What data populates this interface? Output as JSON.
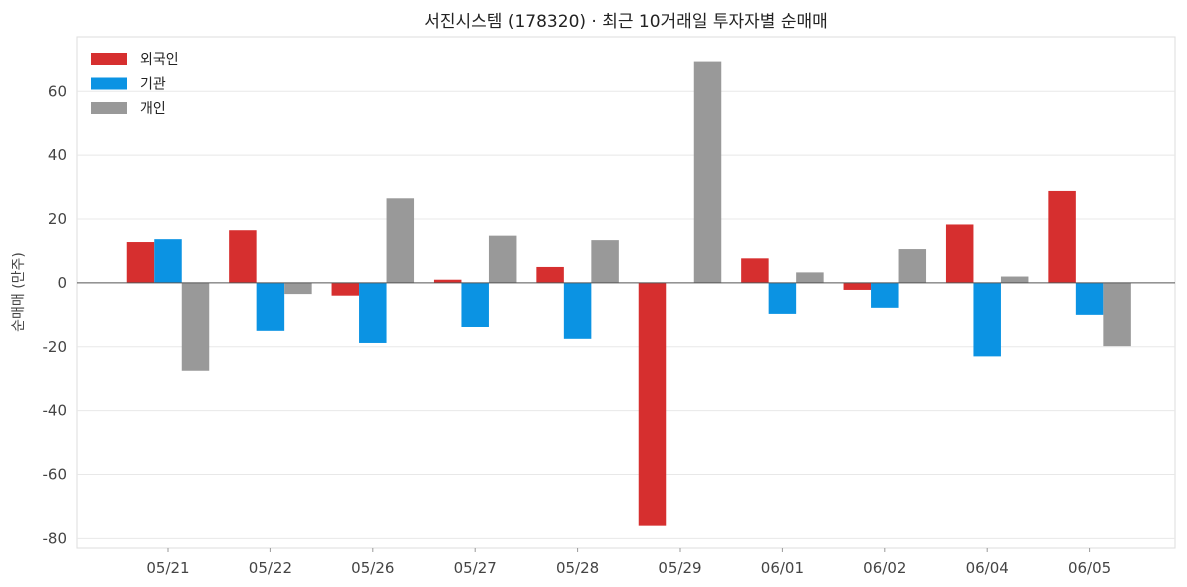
{
  "chart_data": {
    "type": "bar",
    "title": "서진시스템 (178320) · 최근 10거래일 투자자별 순매매",
    "ylabel": "순매매 (만주)",
    "xlabel": "",
    "ylim": [
      -83,
      77
    ],
    "yticks": [
      -80,
      -60,
      -40,
      -20,
      0,
      20,
      40,
      60
    ],
    "grid": true,
    "legend_position": "top-left",
    "categories": [
      "05/21",
      "05/22",
      "05/26",
      "05/27",
      "05/28",
      "05/29",
      "06/01",
      "06/02",
      "06/04",
      "06/05"
    ],
    "series": [
      {
        "name": "외국인",
        "color": "#d62f2f",
        "values": [
          12.8,
          16.5,
          -4.0,
          1.0,
          5.0,
          -76.0,
          7.7,
          -2.2,
          18.3,
          28.8
        ]
      },
      {
        "name": "기관",
        "color": "#0b93e3",
        "values": [
          13.7,
          -15.0,
          -18.8,
          -13.8,
          -17.5,
          0.0,
          -9.7,
          -7.8,
          -23.0,
          -10.0
        ]
      },
      {
        "name": "개인",
        "color": "#999999",
        "values": [
          -27.5,
          -3.5,
          26.5,
          14.8,
          13.4,
          69.3,
          3.3,
          10.6,
          2.0,
          -19.8
        ]
      }
    ]
  }
}
